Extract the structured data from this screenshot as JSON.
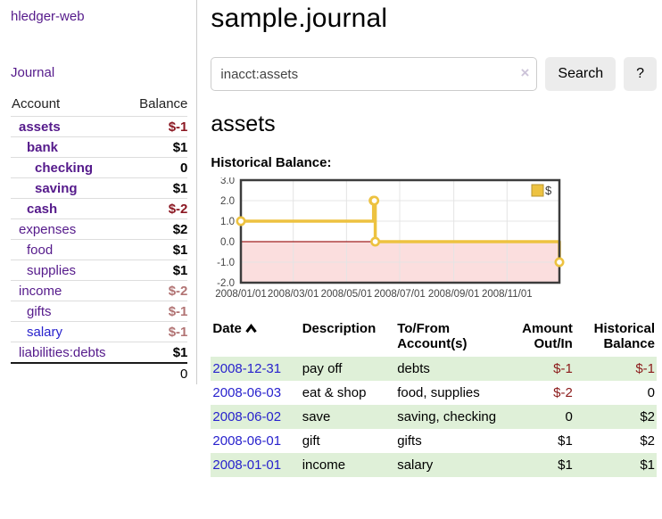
{
  "sidebar": {
    "app_title": "hledger-web",
    "journal_link": "Journal",
    "accounts_table": {
      "headers": {
        "account": "Account",
        "balance": "Balance"
      },
      "rows": [
        {
          "name": "assets",
          "indent": 1,
          "bold": true,
          "balance": "$-1",
          "negative": true
        },
        {
          "name": "bank",
          "indent": 2,
          "bold": true,
          "balance": "$1",
          "negative": false
        },
        {
          "name": "checking",
          "indent": 3,
          "bold": true,
          "balance": "0",
          "negative": false
        },
        {
          "name": "saving",
          "indent": 3,
          "bold": true,
          "balance": "$1",
          "negative": false
        },
        {
          "name": "cash",
          "indent": 2,
          "bold": true,
          "balance": "$-2",
          "negative": true
        },
        {
          "name": "expenses",
          "indent": 1,
          "bold": false,
          "balance": "$2",
          "negative": false
        },
        {
          "name": "food",
          "indent": 2,
          "bold": false,
          "balance": "$1",
          "negative": false
        },
        {
          "name": "supplies",
          "indent": 2,
          "bold": false,
          "balance": "$1",
          "negative": false
        },
        {
          "name": "income",
          "indent": 1,
          "bold": false,
          "balance": "$-2",
          "negative": true
        },
        {
          "name": "gifts",
          "indent": 2,
          "bold": false,
          "balance": "$-1",
          "negative": true
        },
        {
          "name": "salary",
          "indent": 2,
          "bold": false,
          "balance": "$-1",
          "negative": true,
          "unvisited": true
        },
        {
          "name": "liabilities:debts",
          "indent": 1,
          "bold": false,
          "balance": "$1",
          "negative": false
        }
      ],
      "total": "0"
    }
  },
  "header": {
    "title": "sample.journal"
  },
  "search": {
    "value": "inacct:assets",
    "clear_icon": "×",
    "button_label": "Search",
    "help_label": "?"
  },
  "account_page": {
    "heading": "assets",
    "chart_label": "Historical Balance:"
  },
  "chart_data": {
    "type": "line",
    "title": "Historical Balance",
    "step": true,
    "series": [
      {
        "name": "$",
        "color": "#edc240",
        "points": [
          [
            "2008-01-01",
            1
          ],
          [
            "2008-06-01",
            2
          ],
          [
            "2008-06-02",
            2
          ],
          [
            "2008-06-03",
            0
          ],
          [
            "2008-12-31",
            -1
          ]
        ]
      }
    ],
    "x_range": [
      "2008-01-01",
      "2008-12-31"
    ],
    "x_ticks": [
      "2008/01/01",
      "2008/03/01",
      "2008/05/01",
      "2008/07/01",
      "2008/09/01",
      "2008/11/01"
    ],
    "y_ticks": [
      3,
      2,
      1,
      0,
      -1,
      -2
    ],
    "ylim": [
      -2,
      3
    ],
    "grid": true,
    "legend_position": "top-right",
    "negative_region_color": "#fbdede",
    "zero_line_color": "#a02020"
  },
  "transactions": {
    "headers": {
      "date": "Date",
      "description": "Description",
      "accounts": "To/From Account(s)",
      "amount": "Amount Out/In",
      "balance": "Historical Balance"
    },
    "sort_icon": "chevron-up",
    "rows": [
      {
        "date": "2008-12-31",
        "description": "pay off",
        "accounts": "debts",
        "amount": "$-1",
        "amount_negative": true,
        "balance": "$-1",
        "balance_negative": true
      },
      {
        "date": "2008-06-03",
        "description": "eat & shop",
        "accounts": "food, supplies",
        "amount": "$-2",
        "amount_negative": true,
        "balance": "0",
        "balance_negative": false
      },
      {
        "date": "2008-06-02",
        "description": "save",
        "accounts": "saving, checking",
        "amount": "0",
        "amount_negative": false,
        "balance": "$2",
        "balance_negative": false
      },
      {
        "date": "2008-06-01",
        "description": "gift",
        "accounts": "gifts",
        "amount": "$1",
        "amount_negative": false,
        "balance": "$2",
        "balance_negative": false
      },
      {
        "date": "2008-01-01",
        "description": "income",
        "accounts": "salary",
        "amount": "$1",
        "amount_negative": false,
        "balance": "$1",
        "balance_negative": false
      }
    ]
  },
  "colors": {
    "link_purple": "#551a8b",
    "link_blue": "#2822cd",
    "negative_bold": "#8b1722",
    "negative_light": "#b17373",
    "row_stripe_green": "#dff0d8",
    "chart_line_gold": "#edc240",
    "chart_negative_pink": "#fbdede"
  }
}
